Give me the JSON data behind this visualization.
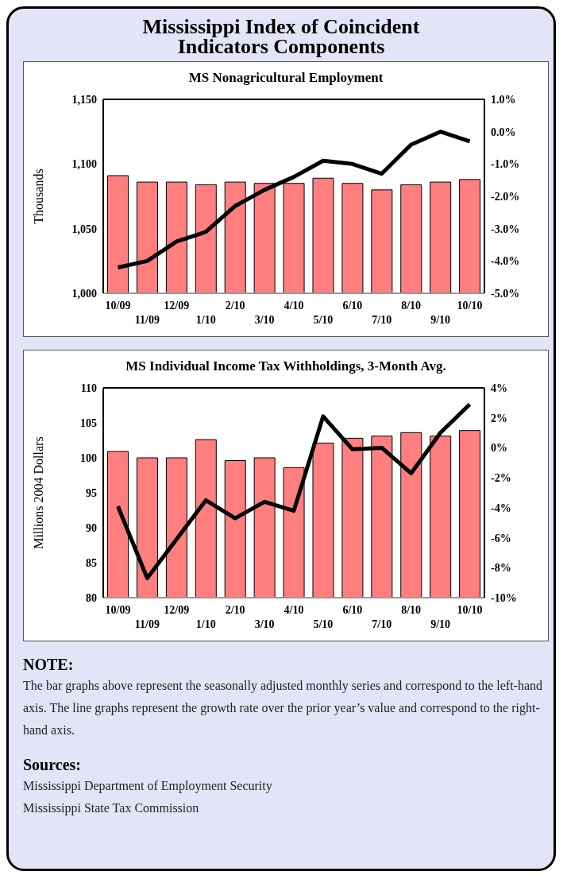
{
  "chart_data": [
    {
      "type": "bar",
      "title": "Mississippi Index of Coincident Indicators Components",
      "subtitle": "MS Nonagricultural Employment",
      "ylabel": "Thousands",
      "categories": [
        "10/09",
        "11/09",
        "12/09",
        "1/10",
        "2/10",
        "3/10",
        "4/10",
        "5/10",
        "6/10",
        "7/10",
        "8/10",
        "9/10",
        "10/10"
      ],
      "series": [
        {
          "color": "#ff7f7f",
          "values": [
            1091,
            1086,
            1086,
            1084,
            1086,
            1085,
            1085,
            1089,
            1085,
            1080,
            1084,
            1086,
            1088
          ]
        },
        {
          "type": "line",
          "axis": "y2",
          "color": "#000000",
          "values": [
            -4.2,
            -4.0,
            -3.4,
            -3.1,
            -2.3,
            -1.8,
            -1.4,
            -0.9,
            -1.0,
            -1.3,
            -0.4,
            0.0,
            -0.3
          ]
        }
      ],
      "ylim": [
        1000,
        1150
      ],
      "yticks": [
        {
          "value": 1000,
          "label": "1,000"
        },
        {
          "value": 1050,
          "label": "1,050"
        },
        {
          "value": 1100,
          "label": "1,100"
        },
        {
          "value": 1150,
          "label": "1,150"
        }
      ],
      "y2lim": [
        -5,
        1
      ],
      "y2ticks": [
        {
          "value": -5,
          "label": "-5.0%"
        },
        {
          "value": -4,
          "label": "-4.0%"
        },
        {
          "value": -3,
          "label": "-3.0%"
        },
        {
          "value": -2,
          "label": "-2.0%"
        },
        {
          "value": -1,
          "label": "-1.0%"
        },
        {
          "value": 0,
          "label": "0.0%"
        },
        {
          "value": 1,
          "label": "1.0%"
        }
      ]
    },
    {
      "type": "bar",
      "title": "MS Individual Income Tax Withholdings, 3-Month Avg.",
      "ylabel": "Millions 2004 Dollars",
      "categories": [
        "10/09",
        "11/09",
        "12/09",
        "1/10",
        "2/10",
        "3/10",
        "4/10",
        "5/10",
        "6/10",
        "7/10",
        "8/10",
        "9/10",
        "10/10"
      ],
      "series": [
        {
          "color": "#ff7f7f",
          "values": [
            100.9,
            100.0,
            100.0,
            102.6,
            99.6,
            100.0,
            98.6,
            102.1,
            102.8,
            103.1,
            103.6,
            103.1,
            103.9
          ]
        },
        {
          "type": "line",
          "axis": "y2",
          "color": "#000000",
          "values": [
            -3.9,
            -8.7,
            -6.1,
            -3.5,
            -4.7,
            -3.6,
            -4.2,
            2.1,
            -0.1,
            0.0,
            -1.7,
            1.0,
            2.9
          ]
        }
      ],
      "ylim": [
        80,
        110
      ],
      "yticks": [
        80,
        85,
        90,
        95,
        100,
        105,
        110
      ],
      "y2lim": [
        -10,
        4
      ],
      "y2ticks": [
        {
          "value": -10,
          "label": "-10%"
        },
        {
          "value": -8,
          "label": "-8%"
        },
        {
          "value": -6,
          "label": "-6%"
        },
        {
          "value": -4,
          "label": "-4%"
        },
        {
          "value": -2,
          "label": "-2%"
        },
        {
          "value": 0,
          "label": "0%"
        },
        {
          "value": 2,
          "label": "2%"
        },
        {
          "value": 4,
          "label": "4%"
        }
      ],
      "annotations": [
        "NOTE:",
        "The bar graphs above represent the seasonally adjusted monthly series and correspond to the left-hand axis.  The line graphs represent the growth rate over the prior year’s value and correspond to the right-hand axis.",
        "Sources:",
        "Mississippi Department of Employment Security",
        "Mississippi State Tax Commission"
      ]
    }
  ]
}
